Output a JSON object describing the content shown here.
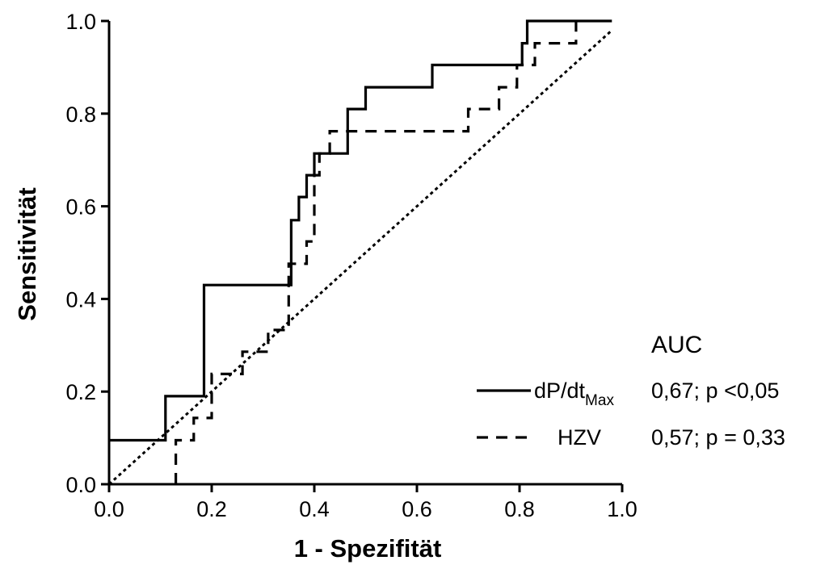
{
  "chart_data": {
    "type": "line",
    "xlabel": "1 - Spezifität",
    "ylabel": "Sensitivität",
    "xlim": [
      0,
      1
    ],
    "ylim": [
      0,
      1
    ],
    "xticks": [
      "0.0",
      "0.2",
      "0.4",
      "0.6",
      "0.8",
      "1.0"
    ],
    "yticks": [
      "0.0",
      "0.2",
      "0.4",
      "0.6",
      "0.8",
      "1.0"
    ],
    "grid": false,
    "legend": {
      "title": "AUC",
      "placement": "bottom-right"
    },
    "series": [
      {
        "name": "dP/dtMax",
        "name_main": "dP/dt",
        "name_sub": "Max",
        "auc_text": "0,67; p <0,05",
        "style": "solid",
        "x": [
          0,
          0.11,
          0.11,
          0.185,
          0.185,
          0.355,
          0.355,
          0.37,
          0.37,
          0.385,
          0.385,
          0.4,
          0.4,
          0.415,
          0.415,
          0.465,
          0.465,
          0.5,
          0.5,
          0.63,
          0.63,
          0.795,
          0.795,
          0.805,
          0.805,
          0.815,
          0.815,
          0.98
        ],
        "y": [
          0.095,
          0.095,
          0.19,
          0.19,
          0.43,
          0.43,
          0.57,
          0.57,
          0.62,
          0.62,
          0.667,
          0.667,
          0.714,
          0.714,
          0.714,
          0.714,
          0.81,
          0.81,
          0.857,
          0.857,
          0.905,
          0.905,
          0.905,
          0.905,
          0.952,
          0.952,
          1.0,
          1.0
        ]
      },
      {
        "name": "HZV",
        "auc_text": "0,57; p = 0,33",
        "style": "dashed",
        "x": [
          0.13,
          0.13,
          0.165,
          0.165,
          0.2,
          0.2,
          0.26,
          0.26,
          0.31,
          0.31,
          0.35,
          0.35,
          0.385,
          0.385,
          0.4,
          0.4,
          0.41,
          0.41,
          0.43,
          0.43,
          0.7,
          0.7,
          0.76,
          0.76,
          0.795,
          0.795,
          0.83,
          0.83,
          0.91,
          0.91
        ],
        "y": [
          0.0,
          0.095,
          0.095,
          0.143,
          0.143,
          0.238,
          0.238,
          0.286,
          0.286,
          0.333,
          0.333,
          0.476,
          0.476,
          0.524,
          0.524,
          0.667,
          0.667,
          0.714,
          0.714,
          0.762,
          0.762,
          0.81,
          0.81,
          0.857,
          0.857,
          0.905,
          0.905,
          0.952,
          0.952,
          1.0
        ]
      },
      {
        "name": "",
        "style": "dotted",
        "x": [
          0,
          0.98
        ],
        "y": [
          0,
          0.98
        ]
      }
    ]
  }
}
